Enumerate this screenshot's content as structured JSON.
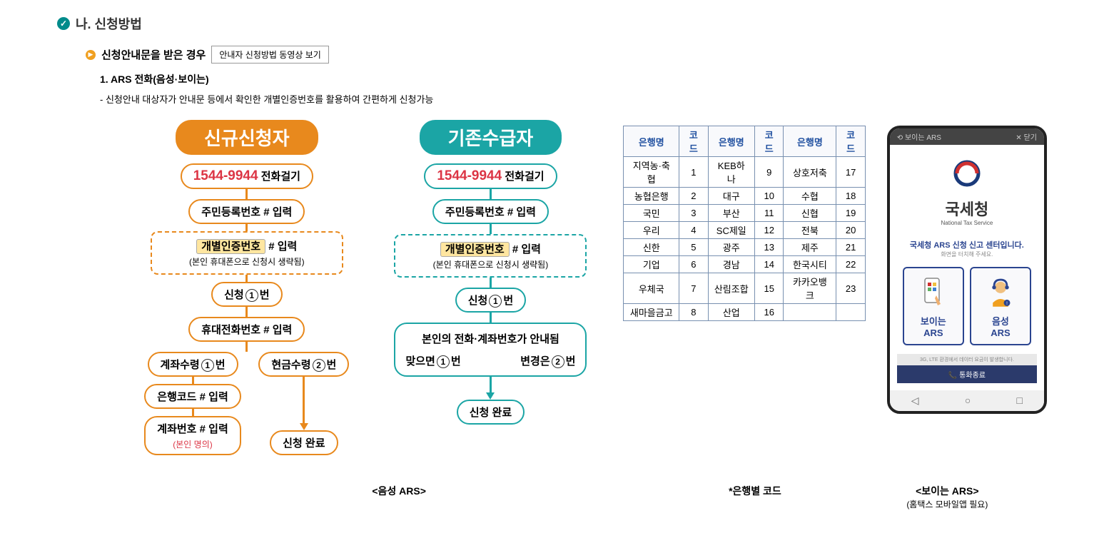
{
  "section": {
    "title": "나. 신청방법"
  },
  "sub": {
    "title": "신청안내문을 받은 경우",
    "video_btn": "안내자 신청방법 동영상 보기"
  },
  "item": {
    "title": "1. ARS 전화(음성·보이는)",
    "desc": "- 신청안내 대상자가 안내문 등에서 확인한 개별인증번호를 활용하여 간편하게 신청가능"
  },
  "flow_new": {
    "header": "신규신청자",
    "phone_label": "전화걸기",
    "phone_num": "1544-9944",
    "step2": "주민등록번호 # 입력",
    "step3_box": "개별인증번호",
    "step3_suffix": "# 입력",
    "step3_note": "(본인 휴대폰으로 신청시 생략됨)",
    "step4_pre": "신청",
    "step4_num": "1",
    "step4_suf": "번",
    "step5": "휴대전화번호 # 입력",
    "split_left_pre": "계좌수령",
    "split_left_num": "1",
    "split_left_suf": "번",
    "split_right_pre": "현금수령",
    "split_right_num": "2",
    "split_right_suf": "번",
    "bank_code": "은행코드 # 입력",
    "account_top": "계좌번호 # 입력",
    "account_note": "(본인 명의)",
    "done": "신청 완료"
  },
  "flow_existing": {
    "header": "기존수급자",
    "phone_label": "전화걸기",
    "phone_num": "1544-9944",
    "step2": "주민등록번호 # 입력",
    "step3_box": "개별인증번호",
    "step3_suffix": "# 입력",
    "step3_note": "(본인 휴대폰으로 신청시 생략됨)",
    "step4_pre": "신청",
    "step4_num": "1",
    "step4_suf": "번",
    "info_line1": "본인의 전화·계좌번호가 안내됨",
    "info_ok_pre": "맞으면",
    "info_ok_num": "1",
    "info_ok_suf": "번",
    "info_change_pre": "변경은",
    "info_change_num": "2",
    "info_change_suf": "번",
    "done": "신청 완료"
  },
  "bank_table": {
    "headers": [
      "은행명",
      "코드",
      "은행명",
      "코드",
      "은행명",
      "코드"
    ],
    "rows": [
      [
        "지역농·축협",
        "1",
        "KEB하나",
        "9",
        "상호저축",
        "17"
      ],
      [
        "농협은행",
        "2",
        "대구",
        "10",
        "수협",
        "18"
      ],
      [
        "국민",
        "3",
        "부산",
        "11",
        "신협",
        "19"
      ],
      [
        "우리",
        "4",
        "SC제일",
        "12",
        "전북",
        "20"
      ],
      [
        "신한",
        "5",
        "광주",
        "13",
        "제주",
        "21"
      ],
      [
        "기업",
        "6",
        "경남",
        "14",
        "한국시티",
        "22"
      ],
      [
        "우체국",
        "7",
        "산림조합",
        "15",
        "카카오뱅크",
        "23"
      ],
      [
        "새마을금고",
        "8",
        "산업",
        "16",
        "",
        ""
      ]
    ]
  },
  "phone": {
    "top_left": "보이는 ARS",
    "top_right": "✕ 닫기",
    "nts_title": "국세청",
    "nts_sub": "National Tax Service",
    "msg": "국세청 ARS 신청 신고 센터입니다.",
    "msg_sub": "화면을 터치해 주세요.",
    "opt1_line1": "보이는",
    "opt1_line2": "ARS",
    "opt2_line1": "음성",
    "opt2_line2": "ARS",
    "footer": "3G, LTE 환경에서 데이터 요금이 발생합니다.",
    "end": "통화종료"
  },
  "captions": {
    "voice": "<음성 ARS>",
    "bank": "*은행별 코드",
    "visual": "<보이는 ARS>",
    "visual_sub": "(홈택스 모바일앱 필요)"
  },
  "colors": {
    "orange": "#e8891d",
    "teal": "#1ba5a5",
    "red": "#dc3545"
  }
}
